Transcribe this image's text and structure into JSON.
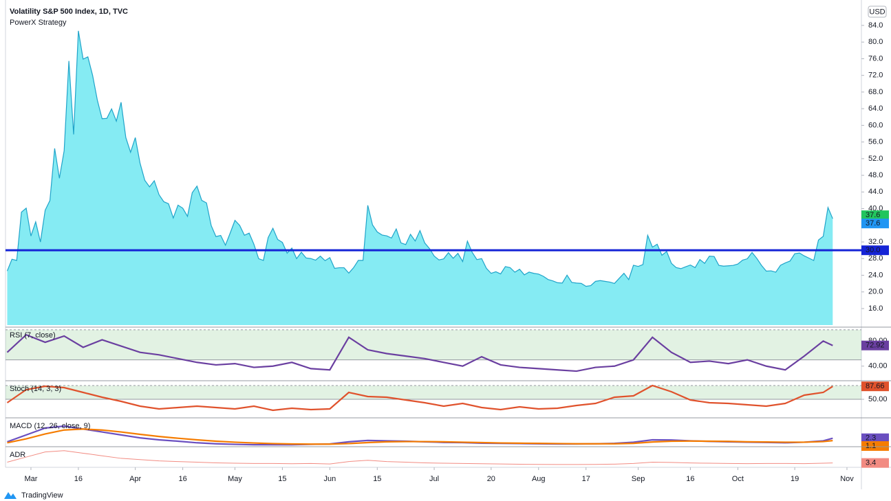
{
  "brand": "TradingView",
  "chart_data": [
    {
      "type": "area",
      "title": "Volatility S&P 500 Index, 1D, TVC",
      "subtitle": "PowerX Strategy",
      "currency": "USD",
      "color": "#1fa3c9",
      "fill": "#7eeaf2",
      "values": [
        25.03,
        27.85,
        27.56,
        39.16,
        40.11,
        33.42,
        36.82,
        31.99,
        39.62,
        41.94,
        54.46,
        47.3,
        53.9,
        75.47,
        57.83,
        82.69,
        75.91,
        76.45,
        72.0,
        66.04,
        61.59,
        61.67,
        63.95,
        61.0,
        65.54,
        57.08,
        53.54,
        57.06,
        50.91,
        46.8,
        45.24,
        46.7,
        43.35,
        41.67,
        41.17,
        37.76,
        40.84,
        40.11,
        38.15,
        43.83,
        45.41,
        41.98,
        41.38,
        35.93,
        33.29,
        33.57,
        31.23,
        34.15,
        37.19,
        35.97,
        33.61,
        34.12,
        31.44,
        27.98,
        27.57,
        33.04,
        35.28,
        32.61,
        31.89,
        29.3,
        30.53,
        27.99,
        29.53,
        28.16,
        28.01,
        27.62,
        28.59,
        27.51,
        28.23,
        25.66,
        25.81,
        25.81,
        24.52,
        25.81,
        27.57,
        27.57,
        40.79,
        36.09,
        34.4,
        33.67,
        33.47,
        32.94,
        35.12,
        31.77,
        31.37,
        33.84,
        32.22,
        34.73,
        31.78,
        30.43,
        28.62,
        27.68,
        27.94,
        29.43,
        28.08,
        29.26,
        27.29,
        32.19,
        29.52,
        27.76,
        28.0,
        25.68,
        24.46,
        24.84,
        24.32,
        26.08,
        25.84,
        24.74,
        25.44,
        24.1,
        24.76,
        24.46,
        24.28,
        23.76,
        22.99,
        22.65,
        22.21,
        22.13,
        24.03,
        22.28,
        22.13,
        22.05,
        21.35,
        21.51,
        22.54,
        22.72,
        22.54,
        22.37,
        22.03,
        23.27,
        24.47,
        22.96,
        26.41,
        26.12,
        26.57,
        33.6,
        30.75,
        31.46,
        28.81,
        29.71,
        26.87,
        25.85,
        25.59,
        26.04,
        26.46,
        25.83,
        27.78,
        26.86,
        28.58,
        28.51,
        26.38,
        26.19,
        26.27,
        26.37,
        26.7,
        27.63,
        27.96,
        29.48,
        28.06,
        26.36,
        25.0,
        25.07,
        24.73,
        26.4,
        26.97,
        27.41,
        29.18,
        29.35,
        28.65,
        28.11,
        27.55,
        32.46,
        33.35,
        40.28,
        37.59
      ],
      "xlim": [
        -0.36,
        180.05
      ],
      "xticks": [
        {
          "value": 5,
          "label": "Mar"
        },
        {
          "value": 15,
          "label": "16"
        },
        {
          "value": 27,
          "label": "Apr"
        },
        {
          "value": 37,
          "label": "16"
        },
        {
          "value": 48,
          "label": "May"
        },
        {
          "value": 58,
          "label": "15"
        },
        {
          "value": 68,
          "label": "Jun"
        },
        {
          "value": 78,
          "label": "15"
        },
        {
          "value": 90,
          "label": "Jul"
        },
        {
          "value": 102,
          "label": "20"
        },
        {
          "value": 112,
          "label": "Aug"
        },
        {
          "value": 122,
          "label": "17"
        },
        {
          "value": 133,
          "label": "Sep"
        },
        {
          "value": 144,
          "label": "16"
        },
        {
          "value": 154,
          "label": "Oct"
        },
        {
          "value": 166,
          "label": "19"
        },
        {
          "value": 177,
          "label": "Nov"
        }
      ],
      "ylim": [
        12.04,
        90.1
      ],
      "yticks": [
        {
          "value": 16,
          "label": "16.0"
        },
        {
          "value": 20,
          "label": "20.0"
        },
        {
          "value": 24,
          "label": "24.0"
        },
        {
          "value": 28,
          "label": "28.0"
        },
        {
          "value": 32,
          "label": "32.0"
        },
        {
          "value": 36,
          "label": "36.0"
        },
        {
          "value": 40,
          "label": "40.0"
        },
        {
          "value": 44,
          "label": "44.0"
        },
        {
          "value": 48,
          "label": "48.0"
        },
        {
          "value": 52,
          "label": "52.0"
        },
        {
          "value": 56,
          "label": "56.0"
        },
        {
          "value": 60,
          "label": "60.0"
        },
        {
          "value": 64,
          "label": "64.0"
        },
        {
          "value": 68,
          "label": "68.0"
        },
        {
          "value": 72,
          "label": "72.0"
        },
        {
          "value": 76,
          "label": "76.0"
        },
        {
          "value": 80,
          "label": "80.0"
        },
        {
          "value": 84,
          "label": "84.0"
        }
      ],
      "hline": {
        "value": 30,
        "label": "30.0",
        "color": "#1524d6"
      },
      "price_labels": [
        {
          "label": "37.6",
          "color": "#22c55e"
        },
        {
          "label": "37.6",
          "color": "#2196f3"
        }
      ]
    },
    {
      "type": "line",
      "title": "RSI (7, close)",
      "x": [
        0,
        4,
        8,
        12,
        16,
        20,
        24,
        28,
        32,
        36,
        40,
        44,
        48,
        52,
        56,
        60,
        64,
        68,
        72,
        76,
        80,
        84,
        88,
        92,
        96,
        100,
        104,
        108,
        112,
        116,
        120,
        124,
        128,
        132,
        136,
        140,
        144,
        148,
        152,
        156,
        160,
        164,
        168,
        172,
        174
      ],
      "series": [
        {
          "color": "#6a3fa0",
          "values": [
            62,
            90,
            78,
            88,
            70,
            82,
            72,
            62,
            58,
            52,
            46,
            42,
            44,
            38,
            40,
            46,
            36,
            34,
            86,
            66,
            60,
            56,
            52,
            46,
            40,
            55,
            42,
            38,
            36,
            34,
            32,
            38,
            40,
            50,
            86,
            62,
            46,
            48,
            44,
            50,
            40,
            34,
            56,
            80,
            72.92
          ]
        }
      ],
      "ylim": [
        20,
        100
      ],
      "yticks": [
        {
          "value": 40,
          "label": "40.00"
        },
        {
          "value": 80,
          "label": "80.00"
        }
      ],
      "band": [
        50,
        98
      ]
    },
    {
      "type": "line",
      "title": "Stoch (14, 3, 3)",
      "x": [
        0,
        4,
        8,
        12,
        16,
        20,
        24,
        28,
        32,
        36,
        40,
        44,
        48,
        52,
        56,
        60,
        64,
        68,
        72,
        76,
        80,
        84,
        88,
        92,
        96,
        100,
        104,
        108,
        112,
        116,
        120,
        124,
        128,
        132,
        136,
        140,
        144,
        148,
        152,
        156,
        160,
        164,
        168,
        172,
        174
      ],
      "series": [
        {
          "color": "#e0522c",
          "values": [
            40,
            78,
            88,
            84,
            70,
            56,
            44,
            30,
            22,
            26,
            30,
            26,
            22,
            30,
            18,
            24,
            20,
            22,
            70,
            58,
            56,
            48,
            40,
            30,
            38,
            26,
            20,
            28,
            22,
            24,
            32,
            38,
            56,
            60,
            90,
            72,
            48,
            40,
            38,
            34,
            30,
            38,
            62,
            70,
            87.66
          ]
        }
      ],
      "ylim": [
        0,
        100
      ],
      "yticks": [
        {
          "value": 50,
          "label": "50.00"
        }
      ],
      "band": [
        50,
        90
      ]
    },
    {
      "type": "line",
      "title": "MACD (12, 26, close, 9)",
      "x": [
        0,
        4,
        8,
        12,
        16,
        20,
        24,
        28,
        32,
        36,
        40,
        44,
        48,
        52,
        56,
        60,
        64,
        68,
        72,
        76,
        80,
        84,
        88,
        92,
        96,
        100,
        104,
        108,
        112,
        116,
        120,
        124,
        128,
        132,
        136,
        140,
        144,
        148,
        152,
        156,
        160,
        164,
        168,
        172,
        174
      ],
      "series": [
        {
          "color": "#6a4fc0",
          "values": [
            0.5,
            4,
            7.5,
            8.5,
            7,
            5.5,
            4,
            2.5,
            1.5,
            0.8,
            0,
            -0.5,
            -0.8,
            -1,
            -1,
            -1,
            -0.8,
            -0.6,
            0.5,
            1.2,
            1,
            0.8,
            0.5,
            0.2,
            0.1,
            -0.2,
            -0.3,
            -0.4,
            -0.5,
            -0.6,
            -0.6,
            -0.5,
            -0.3,
            0.3,
            1.5,
            1.4,
            1,
            0.7,
            0.5,
            0.3,
            0.2,
            0,
            0.3,
            1,
            2.3
          ]
        },
        {
          "color": "#f57c00",
          "values": [
            0,
            2,
            4.5,
            6.5,
            7,
            6.5,
            5.5,
            4.3,
            3.2,
            2.3,
            1.5,
            0.8,
            0.3,
            -0.1,
            -0.4,
            -0.6,
            -0.7,
            -0.7,
            -0.4,
            0.1,
            0.5,
            0.6,
            0.6,
            0.5,
            0.3,
            0.1,
            -0.1,
            -0.2,
            -0.3,
            -0.4,
            -0.5,
            -0.5,
            -0.5,
            -0.3,
            0.4,
            0.8,
            0.9,
            0.8,
            0.7,
            0.5,
            0.4,
            0.3,
            0.3,
            0.6,
            1.1
          ]
        }
      ],
      "ylim": [
        -2,
        12
      ]
    },
    {
      "type": "line",
      "title": "ADR",
      "x": [
        0,
        4,
        8,
        12,
        16,
        20,
        24,
        28,
        32,
        36,
        40,
        44,
        48,
        52,
        56,
        60,
        64,
        68,
        72,
        76,
        80,
        84,
        88,
        92,
        96,
        100,
        104,
        108,
        112,
        116,
        120,
        124,
        128,
        132,
        136,
        140,
        144,
        148,
        152,
        156,
        160,
        164,
        168,
        172,
        174
      ],
      "series": [
        {
          "color": "#f28b82",
          "values": [
            4,
            8,
            12,
            13,
            11,
            9,
            7,
            6,
            5,
            4.5,
            4,
            3.5,
            3.2,
            3,
            3,
            2.8,
            3,
            2.6,
            4.5,
            5.5,
            4.5,
            4,
            3.5,
            3.2,
            3,
            2.8,
            2.6,
            2.4,
            2.3,
            2.2,
            2.2,
            2.3,
            2.5,
            3,
            4,
            3.8,
            3.4,
            3.2,
            3,
            2.9,
            3,
            3,
            2.9,
            3.2,
            3.4
          ]
        }
      ],
      "ylim": [
        0,
        15
      ]
    }
  ]
}
